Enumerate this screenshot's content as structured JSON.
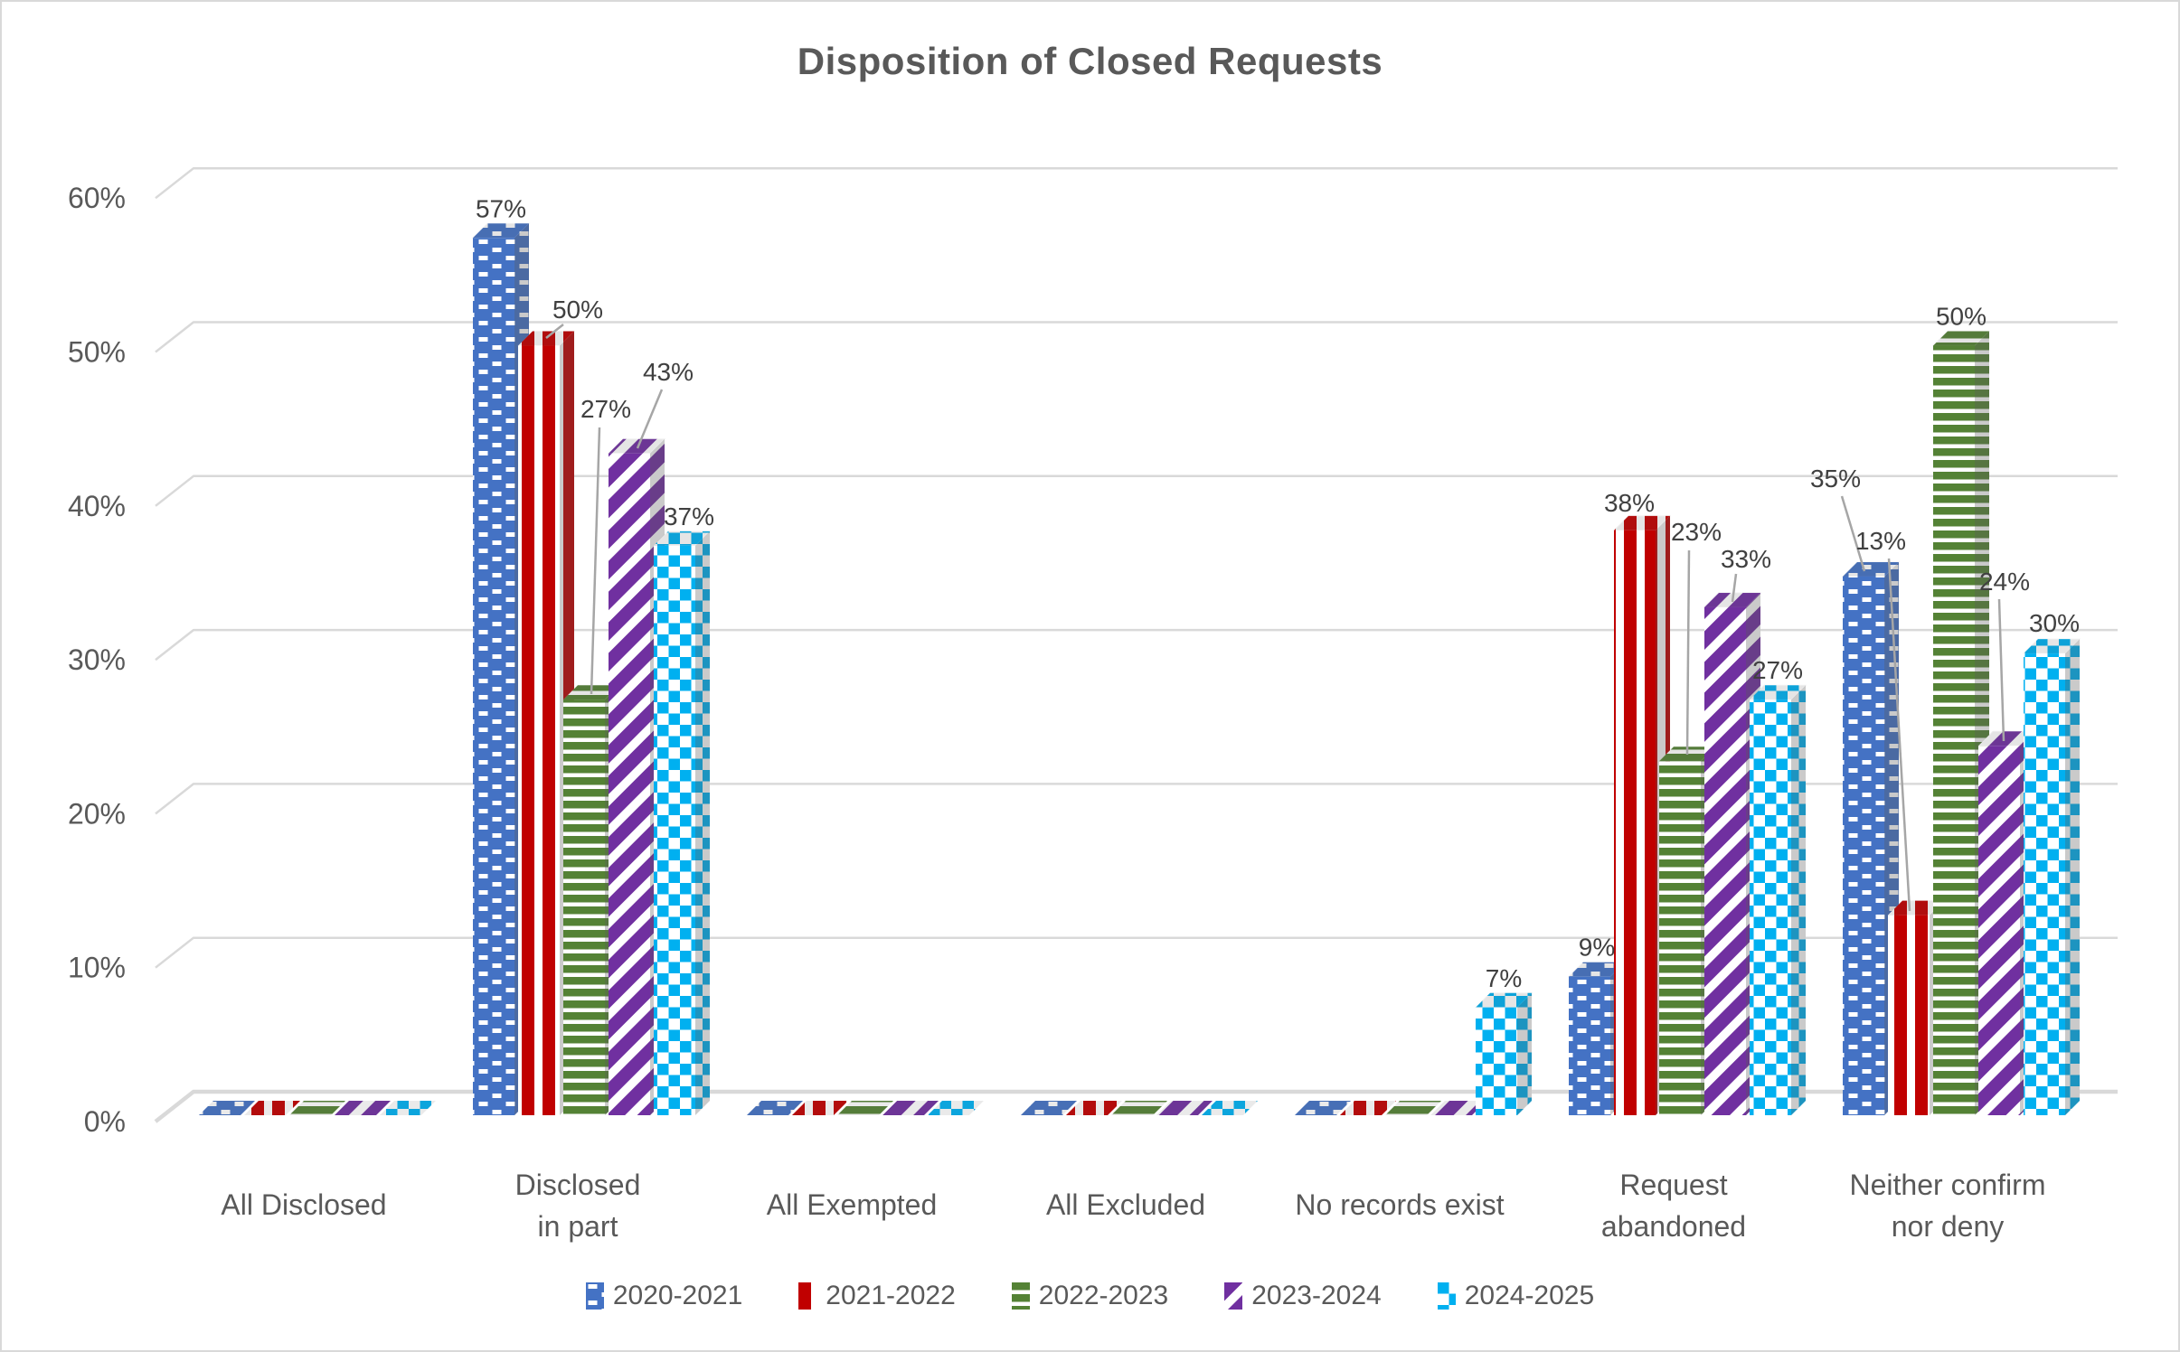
{
  "title": "Disposition of Closed Requests",
  "chart_data": {
    "type": "bar",
    "subtype": "3d-clustered-column-with-pattern-fills",
    "title": "Disposition of Closed Requests",
    "categories": [
      "All Disclosed",
      "Disclosed in part",
      "All Exempted",
      "All Excluded",
      "No records exist",
      "Request abandoned",
      "Neither confirm nor deny"
    ],
    "series": [
      {
        "name": "2020-2021",
        "color": "#4472C4",
        "pattern": "dots",
        "values": [
          0,
          57,
          0,
          0,
          0,
          9,
          35
        ]
      },
      {
        "name": "2021-2022",
        "color": "#C00000",
        "pattern": "vertical-stripes",
        "values": [
          0,
          50,
          0,
          0,
          0,
          38,
          13
        ]
      },
      {
        "name": "2022-2023",
        "color": "#548235",
        "pattern": "horizontal-stripes",
        "values": [
          0,
          27,
          0,
          0,
          0,
          23,
          50
        ]
      },
      {
        "name": "2023-2024",
        "color": "#7030A0",
        "pattern": "diagonal-stripes",
        "values": [
          0,
          43,
          0,
          0,
          0,
          33,
          24
        ]
      },
      {
        "name": "2024-2025",
        "color": "#00B0F0",
        "pattern": "checkerboard",
        "values": [
          0,
          37,
          0,
          0,
          7,
          27,
          30
        ]
      }
    ],
    "data_label_suffix": "%",
    "data_labels_shown_only_for_nonzero": true,
    "xlabel": "",
    "ylabel": "",
    "ylim": [
      0,
      60
    ],
    "yticks": [
      "0%",
      "10%",
      "20%",
      "30%",
      "40%",
      "50%",
      "60%"
    ],
    "grid": true,
    "legend_position": "bottom",
    "colors": {
      "axis_text": "#595959",
      "data_label_text": "#404040",
      "gridline": "#D9D9D9",
      "leader_line": "#A6A6A6",
      "background": "#FFFFFF",
      "border": "#D9D9D9",
      "title_text": "#595959"
    }
  }
}
